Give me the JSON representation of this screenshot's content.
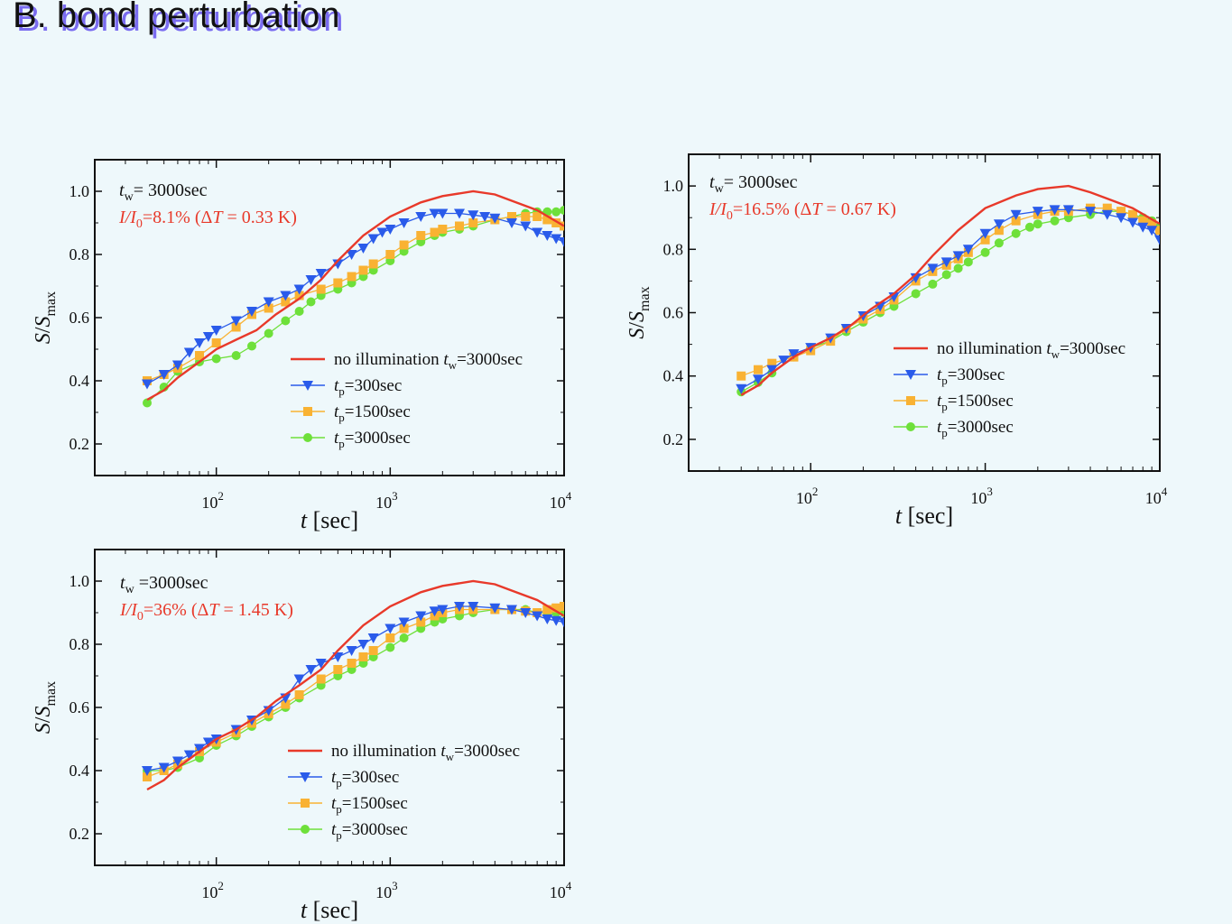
{
  "slide": {
    "title": "B. bond perturbation"
  },
  "colors": {
    "none": "#e8392a",
    "s300": "#2a5bea",
    "s1500": "#f9b233",
    "s3000": "#6ee03a",
    "frame": "#111111",
    "background": "#eef8fb",
    "title_shadow": "#7a6cf0"
  },
  "axes_common": {
    "x_scale": "log",
    "xlim": [
      20,
      10000
    ],
    "ylim": [
      0.1,
      1.1
    ],
    "y_ticks": [
      0.2,
      0.4,
      0.6,
      0.8,
      1.0
    ],
    "x_ticks": [
      100,
      1000,
      10000
    ],
    "x_tick_labels": [
      {
        "base": "10",
        "exp": "2"
      },
      {
        "base": "10",
        "exp": "3"
      },
      {
        "base": "10",
        "exp": "4"
      }
    ],
    "xlabel": {
      "var": "t",
      "unit": " [sec]"
    },
    "ylabel": {
      "num": "S",
      "slash": "/",
      "den": "S",
      "sub": "max"
    }
  },
  "legend_entries": [
    {
      "key": "none",
      "marker": "line",
      "prefix": "no illumination ",
      "var": "t",
      "sub": "w",
      "suffix": "=3000sec"
    },
    {
      "key": "s300",
      "marker": "triangle-down",
      "prefix": "",
      "var": "t",
      "sub": "p",
      "suffix": "=300sec"
    },
    {
      "key": "s1500",
      "marker": "square",
      "prefix": "",
      "var": "t",
      "sub": "p",
      "suffix": "=1500sec"
    },
    {
      "key": "s3000",
      "marker": "circle",
      "prefix": "",
      "var": "t",
      "sub": "p",
      "suffix": "=3000sec"
    }
  ],
  "chart_data": [
    {
      "type": "line",
      "annotation": {
        "line1": {
          "var": "t",
          "sub": "w",
          "text": "= 3000sec"
        },
        "line2": {
          "ratio": "I/I",
          "sub": "0",
          "pct": "=8.1% (Δ",
          "var": "T",
          "rest": " = 0.33 K)"
        }
      },
      "series": [
        {
          "name": "no illumination t_w=3000sec",
          "key": "none",
          "x": [
            40,
            50,
            60,
            80,
            100,
            130,
            170,
            220,
            300,
            400,
            500,
            700,
            1000,
            1500,
            2000,
            3000,
            4000,
            5000,
            7000,
            10000
          ],
          "y": [
            0.34,
            0.37,
            0.41,
            0.46,
            0.5,
            0.53,
            0.56,
            0.61,
            0.66,
            0.72,
            0.78,
            0.86,
            0.92,
            0.965,
            0.985,
            1.0,
            0.99,
            0.97,
            0.94,
            0.89
          ]
        },
        {
          "name": "t_p=300sec",
          "key": "s300",
          "x": [
            40,
            50,
            60,
            70,
            80,
            90,
            100,
            130,
            160,
            200,
            250,
            300,
            350,
            400,
            500,
            600,
            700,
            800,
            900,
            1000,
            1200,
            1500,
            1800,
            2000,
            2500,
            3000,
            3500,
            4000,
            5000,
            6000,
            7000,
            8000,
            9000,
            10000
          ],
          "y": [
            0.39,
            0.42,
            0.45,
            0.49,
            0.52,
            0.54,
            0.56,
            0.59,
            0.62,
            0.65,
            0.67,
            0.69,
            0.72,
            0.74,
            0.77,
            0.8,
            0.82,
            0.85,
            0.87,
            0.88,
            0.9,
            0.92,
            0.93,
            0.93,
            0.93,
            0.925,
            0.92,
            0.915,
            0.9,
            0.89,
            0.87,
            0.86,
            0.85,
            0.84
          ]
        },
        {
          "name": "t_p=1500sec",
          "key": "s1500",
          "x": [
            40,
            50,
            60,
            80,
            100,
            130,
            160,
            200,
            250,
            300,
            400,
            500,
            600,
            700,
            800,
            1000,
            1200,
            1500,
            1800,
            2000,
            2500,
            3000,
            4000,
            5000,
            6000,
            7000,
            8000,
            9000,
            10000
          ],
          "y": [
            0.4,
            0.42,
            0.44,
            0.48,
            0.52,
            0.57,
            0.61,
            0.63,
            0.65,
            0.67,
            0.69,
            0.71,
            0.73,
            0.75,
            0.77,
            0.8,
            0.83,
            0.86,
            0.87,
            0.88,
            0.89,
            0.9,
            0.91,
            0.92,
            0.92,
            0.92,
            0.91,
            0.9,
            0.89
          ]
        },
        {
          "name": "t_p=3000sec",
          "key": "s3000",
          "x": [
            40,
            50,
            60,
            80,
            100,
            130,
            160,
            200,
            250,
            300,
            350,
            400,
            500,
            600,
            700,
            800,
            1000,
            1200,
            1500,
            1800,
            2000,
            2500,
            3000,
            4000,
            5000,
            6000,
            7000,
            8000,
            9000,
            10000
          ],
          "y": [
            0.33,
            0.38,
            0.43,
            0.46,
            0.47,
            0.48,
            0.51,
            0.55,
            0.59,
            0.62,
            0.65,
            0.67,
            0.69,
            0.71,
            0.73,
            0.75,
            0.78,
            0.81,
            0.84,
            0.86,
            0.87,
            0.88,
            0.89,
            0.91,
            0.92,
            0.93,
            0.935,
            0.935,
            0.935,
            0.94
          ]
        }
      ]
    },
    {
      "type": "line",
      "annotation": {
        "line1": {
          "var": "t",
          "sub": "w",
          "text": "= 3000sec"
        },
        "line2": {
          "ratio": "I/I",
          "sub": "0",
          "pct": "=16.5%  (Δ",
          "var": "T",
          "rest": " = 0.67 K)"
        }
      },
      "series": [
        {
          "name": "no illumination t_w=3000sec",
          "key": "none",
          "x": [
            40,
            50,
            60,
            80,
            100,
            130,
            170,
            220,
            300,
            400,
            500,
            700,
            1000,
            1500,
            2000,
            3000,
            4000,
            5000,
            7000,
            10000
          ],
          "y": [
            0.34,
            0.37,
            0.41,
            0.46,
            0.49,
            0.52,
            0.56,
            0.61,
            0.66,
            0.72,
            0.78,
            0.86,
            0.93,
            0.97,
            0.99,
            1.0,
            0.98,
            0.96,
            0.93,
            0.88
          ]
        },
        {
          "name": "t_p=300sec",
          "key": "s300",
          "x": [
            40,
            50,
            60,
            70,
            80,
            100,
            130,
            160,
            200,
            250,
            300,
            400,
            500,
            600,
            700,
            800,
            1000,
            1200,
            1500,
            2000,
            2500,
            3000,
            4000,
            5000,
            6000,
            7000,
            8000,
            9000,
            10000
          ],
          "y": [
            0.36,
            0.39,
            0.42,
            0.45,
            0.47,
            0.49,
            0.52,
            0.55,
            0.59,
            0.62,
            0.65,
            0.71,
            0.74,
            0.76,
            0.78,
            0.8,
            0.85,
            0.88,
            0.91,
            0.92,
            0.925,
            0.925,
            0.92,
            0.91,
            0.9,
            0.885,
            0.87,
            0.86,
            0.83
          ]
        },
        {
          "name": "t_p=1500sec",
          "key": "s1500",
          "x": [
            40,
            50,
            60,
            80,
            100,
            130,
            160,
            200,
            250,
            300,
            400,
            500,
            600,
            700,
            800,
            1000,
            1200,
            1500,
            2000,
            2500,
            3000,
            4000,
            5000,
            6000,
            7000,
            8000,
            9000,
            10000
          ],
          "y": [
            0.4,
            0.42,
            0.44,
            0.46,
            0.48,
            0.51,
            0.55,
            0.58,
            0.61,
            0.64,
            0.7,
            0.73,
            0.75,
            0.77,
            0.79,
            0.83,
            0.86,
            0.89,
            0.91,
            0.92,
            0.92,
            0.93,
            0.93,
            0.92,
            0.91,
            0.89,
            0.88,
            0.86
          ]
        },
        {
          "name": "t_p=3000sec",
          "key": "s3000",
          "x": [
            40,
            50,
            60,
            80,
            100,
            130,
            160,
            200,
            250,
            300,
            400,
            500,
            600,
            700,
            800,
            1000,
            1200,
            1500,
            1800,
            2000,
            2500,
            3000,
            4000,
            5000,
            6000,
            7000,
            8000,
            9000,
            10000
          ],
          "y": [
            0.35,
            0.38,
            0.41,
            0.46,
            0.49,
            0.51,
            0.54,
            0.57,
            0.6,
            0.62,
            0.66,
            0.69,
            0.72,
            0.74,
            0.76,
            0.79,
            0.82,
            0.85,
            0.87,
            0.88,
            0.89,
            0.9,
            0.91,
            0.92,
            0.92,
            0.91,
            0.9,
            0.89,
            0.87
          ]
        }
      ]
    },
    {
      "type": "line",
      "annotation": {
        "line1": {
          "var": "t",
          "sub": "w",
          "text": " =3000sec"
        },
        "line2": {
          "ratio": "I/I",
          "sub": "0",
          "pct": "=36%  (Δ",
          "var": "T",
          "rest": " = 1.45 K)"
        }
      },
      "series": [
        {
          "name": "no illumination t_w=3000sec",
          "key": "none",
          "x": [
            40,
            50,
            60,
            80,
            100,
            130,
            170,
            220,
            300,
            400,
            500,
            700,
            1000,
            1500,
            2000,
            3000,
            4000,
            5000,
            7000,
            10000
          ],
          "y": [
            0.34,
            0.37,
            0.41,
            0.46,
            0.5,
            0.53,
            0.57,
            0.62,
            0.67,
            0.72,
            0.78,
            0.86,
            0.92,
            0.965,
            0.985,
            1.0,
            0.99,
            0.97,
            0.94,
            0.89
          ]
        },
        {
          "name": "t_p=300sec",
          "key": "s300",
          "x": [
            40,
            50,
            60,
            70,
            80,
            90,
            100,
            130,
            160,
            200,
            250,
            300,
            350,
            400,
            500,
            600,
            700,
            800,
            1000,
            1200,
            1500,
            1800,
            2000,
            2500,
            3000,
            4000,
            5000,
            6000,
            7000,
            8000,
            9000,
            10000
          ],
          "y": [
            0.4,
            0.41,
            0.43,
            0.45,
            0.47,
            0.49,
            0.5,
            0.53,
            0.56,
            0.59,
            0.63,
            0.69,
            0.72,
            0.74,
            0.76,
            0.78,
            0.8,
            0.82,
            0.85,
            0.87,
            0.89,
            0.905,
            0.91,
            0.92,
            0.92,
            0.915,
            0.91,
            0.9,
            0.89,
            0.88,
            0.875,
            0.87
          ]
        },
        {
          "name": "t_p=1500sec",
          "key": "s1500",
          "x": [
            40,
            50,
            60,
            80,
            100,
            130,
            160,
            200,
            250,
            300,
            400,
            500,
            600,
            700,
            800,
            1000,
            1200,
            1500,
            1800,
            2000,
            2500,
            3000,
            4000,
            5000,
            6000,
            7000,
            8000,
            9000,
            10000
          ],
          "y": [
            0.38,
            0.4,
            0.42,
            0.46,
            0.49,
            0.52,
            0.55,
            0.58,
            0.61,
            0.64,
            0.69,
            0.72,
            0.74,
            0.76,
            0.78,
            0.82,
            0.85,
            0.87,
            0.89,
            0.9,
            0.91,
            0.91,
            0.91,
            0.91,
            0.905,
            0.9,
            0.91,
            0.915,
            0.92
          ]
        },
        {
          "name": "t_p=3000sec",
          "key": "s3000",
          "x": [
            40,
            50,
            60,
            80,
            100,
            130,
            160,
            200,
            250,
            300,
            400,
            500,
            600,
            700,
            800,
            1000,
            1200,
            1500,
            1800,
            2000,
            2500,
            3000,
            4000,
            5000,
            6000,
            7000,
            8000,
            9000,
            10000
          ],
          "y": [
            0.4,
            0.4,
            0.41,
            0.44,
            0.48,
            0.51,
            0.54,
            0.57,
            0.6,
            0.63,
            0.67,
            0.7,
            0.72,
            0.74,
            0.76,
            0.79,
            0.82,
            0.85,
            0.87,
            0.88,
            0.89,
            0.9,
            0.91,
            0.91,
            0.91,
            0.9,
            0.9,
            0.9,
            0.9
          ]
        }
      ]
    }
  ]
}
